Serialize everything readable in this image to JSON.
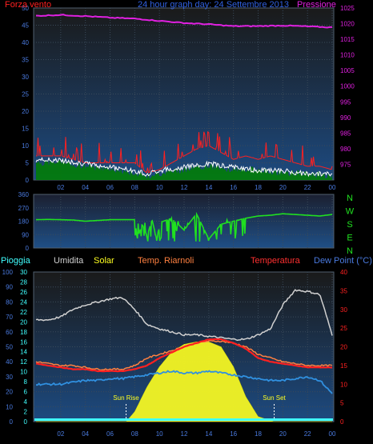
{
  "header": {
    "left_label": "Forza vento",
    "center_title": "24 hour graph day: 24 Settembre 2013",
    "right_label": "Pressione"
  },
  "colors": {
    "wind": "#ff2020",
    "wind_avg": "#00a000",
    "wind_gust_line": "#ffffff",
    "pressure": "#e020e0",
    "direction": "#20e020",
    "label_blue": "#4a7adf",
    "humidity": "#d0d0d0",
    "solar": "#ffff20",
    "temp_riarmoli": "#ff8040",
    "temperatura": "#ff2020",
    "dew": "#3090e0",
    "rain": "#40ffff"
  },
  "chart_data": [
    {
      "type": "line",
      "name": "wind-pressure",
      "yleft": {
        "label": "Forza vento",
        "ticks": [
          "50",
          "45",
          "40",
          "35",
          "30",
          "25",
          "20",
          "15",
          "10",
          "5",
          "0"
        ],
        "range": [
          0,
          50
        ]
      },
      "yright": {
        "label": "Pressione",
        "ticks": [
          "1025",
          "1020",
          "1015",
          "1010",
          "1005",
          "1000",
          "995",
          "990",
          "985",
          "980",
          "975"
        ],
        "range": [
          970,
          1025
        ]
      },
      "xticks": [
        "02",
        "04",
        "06",
        "08",
        "10",
        "12",
        "14",
        "16",
        "18",
        "20",
        "22",
        "00"
      ],
      "series": [
        {
          "name": "Forza vento",
          "axis": "left",
          "x": [
            0,
            1,
            2,
            3,
            4,
            5,
            6,
            7,
            8,
            9,
            10,
            11,
            12,
            13,
            14,
            15,
            16,
            17,
            18,
            19,
            20,
            21,
            22,
            23,
            24
          ],
          "values": [
            7,
            7,
            7,
            6,
            5,
            5,
            5,
            5,
            5,
            2,
            3,
            5,
            7,
            9,
            10,
            8,
            6,
            7,
            6,
            7,
            6,
            5,
            4,
            4,
            3
          ]
        },
        {
          "name": "",
          "axis": "left",
          "x": [
            0,
            2,
            4,
            6,
            8,
            9,
            10,
            12,
            14,
            16,
            18,
            20,
            22,
            24
          ],
          "values": [
            4,
            4,
            3,
            2,
            1,
            0,
            1,
            2,
            3,
            2,
            2,
            1,
            1,
            0
          ]
        },
        {
          "name": "",
          "axis": "left",
          "x": [
            0,
            2,
            4,
            6,
            8,
            9,
            10,
            12,
            14,
            16,
            18,
            20,
            22,
            24
          ],
          "values": [
            5,
            5,
            4,
            3,
            2,
            1,
            2,
            3,
            4,
            3,
            2,
            2,
            1,
            1
          ]
        },
        {
          "name": "Pressione",
          "axis": "right",
          "x": [
            0,
            2,
            4,
            6,
            8,
            10,
            12,
            14,
            16,
            18,
            20,
            22,
            24
          ],
          "values": [
            1022.5,
            1022.8,
            1022.4,
            1021.9,
            1021.6,
            1020.9,
            1020.2,
            1019.8,
            1019.2,
            1019.2,
            1019.4,
            1019.1,
            1018.8
          ]
        }
      ]
    },
    {
      "type": "line",
      "name": "wind-direction",
      "yleft": {
        "ticks": [
          "360",
          "270",
          "180",
          "90",
          "0"
        ],
        "range": [
          0,
          360
        ]
      },
      "yright": {
        "ticks": [
          "N",
          "W",
          "S",
          "E",
          "N"
        ]
      },
      "series": [
        {
          "name": "",
          "x": [
            0,
            1,
            2,
            3,
            4,
            5,
            6,
            7,
            8,
            8.2,
            8.6,
            9,
            9.4,
            9.8,
            10,
            11,
            12,
            13,
            14,
            15,
            16,
            17,
            18,
            19,
            20,
            21,
            22,
            23,
            24
          ],
          "values": [
            190,
            192,
            190,
            188,
            180,
            185,
            190,
            190,
            190,
            60,
            160,
            80,
            190,
            50,
            170,
            200,
            120,
            230,
            60,
            160,
            180,
            200,
            215,
            220,
            230,
            225,
            220,
            215,
            225
          ]
        }
      ]
    },
    {
      "type": "line",
      "name": "temperature-humidity-solar",
      "labels": {
        "rain": "Pioggia",
        "humidity": "Umidita",
        "solar": "Solar",
        "riarmoli": "Temp. Riarnoli",
        "temperatura": "Temperatura",
        "dew": "Dew Point (°C)"
      },
      "y_humidity": {
        "ticks": [
          "100",
          "90",
          "80",
          "70",
          "60",
          "50",
          "40",
          "30",
          "20",
          "10",
          "0"
        ],
        "range": [
          0,
          100
        ]
      },
      "y_rain": {
        "ticks": [
          "30",
          "28",
          "26",
          "24",
          "22",
          "20",
          "18",
          "16",
          "14",
          "12",
          "10",
          "8",
          "6",
          "4",
          "2",
          "0"
        ],
        "range": [
          0,
          30
        ]
      },
      "y_temp": {
        "ticks": [
          "40",
          "35",
          "30",
          "25",
          "20",
          "15",
          "10",
          "5",
          "0"
        ],
        "range": [
          0,
          40
        ]
      },
      "xticks": [
        "02",
        "04",
        "06",
        "08",
        "10",
        "12",
        "14",
        "16",
        "18",
        "20",
        "22",
        "00"
      ],
      "annotations": [
        {
          "text": "Sun Rise",
          "x": 7.3
        },
        {
          "text": "Sun Set",
          "x": 19.3
        }
      ],
      "series": [
        {
          "name": "Umidita",
          "axis": "humidity",
          "x": [
            0,
            1,
            2,
            3,
            4,
            5,
            6,
            7,
            8,
            9,
            10,
            11,
            12,
            13,
            14,
            15,
            16,
            17,
            18,
            19,
            20,
            21,
            22,
            23,
            24
          ],
          "values": [
            68,
            68,
            70,
            75,
            78,
            80,
            82,
            83,
            75,
            65,
            62,
            60,
            58,
            58,
            57,
            56,
            55,
            55,
            58,
            62,
            78,
            88,
            87,
            85,
            58
          ]
        },
        {
          "name": "Temp. Riarnoli",
          "axis": "temp",
          "x": [
            0,
            1,
            2,
            3,
            4,
            5,
            6,
            7,
            8,
            9,
            10,
            11,
            12,
            13,
            14,
            15,
            16,
            17,
            18,
            19,
            20,
            21,
            22,
            23,
            24
          ],
          "values": [
            16,
            15.5,
            15,
            15,
            14.5,
            14,
            14,
            14,
            15,
            17,
            18,
            19,
            20,
            21,
            21.5,
            21.5,
            21,
            20,
            18,
            17,
            16,
            15.5,
            15,
            15,
            15
          ]
        },
        {
          "name": "Temperatura",
          "axis": "temp",
          "x": [
            0,
            1,
            2,
            3,
            4,
            5,
            6,
            7,
            8,
            9,
            10,
            11,
            12,
            13,
            14,
            15,
            16,
            17,
            18,
            19,
            20,
            21,
            22,
            23,
            24
          ],
          "values": [
            15.5,
            15,
            14.5,
            14,
            14,
            13.5,
            13.5,
            13.5,
            14,
            15,
            17,
            18.5,
            20,
            21,
            22,
            22,
            21,
            19.5,
            17,
            16,
            15.5,
            15,
            14.5,
            14.5,
            14.5
          ]
        },
        {
          "name": "Dew Point",
          "axis": "temp",
          "x": [
            0,
            1,
            2,
            3,
            4,
            5,
            6,
            7,
            8,
            9,
            10,
            11,
            12,
            13,
            14,
            15,
            16,
            17,
            18,
            19,
            20,
            21,
            22,
            23,
            24
          ],
          "values": [
            10,
            10,
            10,
            10.5,
            11,
            11,
            11.5,
            11.5,
            12,
            12.5,
            13,
            13.5,
            13,
            13,
            13.5,
            13,
            12.5,
            12,
            11.5,
            11,
            11,
            11.5,
            12,
            11,
            7.5
          ]
        },
        {
          "name": "Solar",
          "axis": "rain",
          "x": [
            0,
            7.3,
            8,
            9,
            10,
            11,
            12,
            13,
            14,
            15,
            16,
            17,
            18,
            19.3,
            24
          ],
          "values": [
            0,
            0,
            2,
            7,
            11,
            14,
            15.5,
            16,
            16,
            15,
            11,
            5,
            1,
            0,
            0
          ]
        }
      ]
    }
  ]
}
